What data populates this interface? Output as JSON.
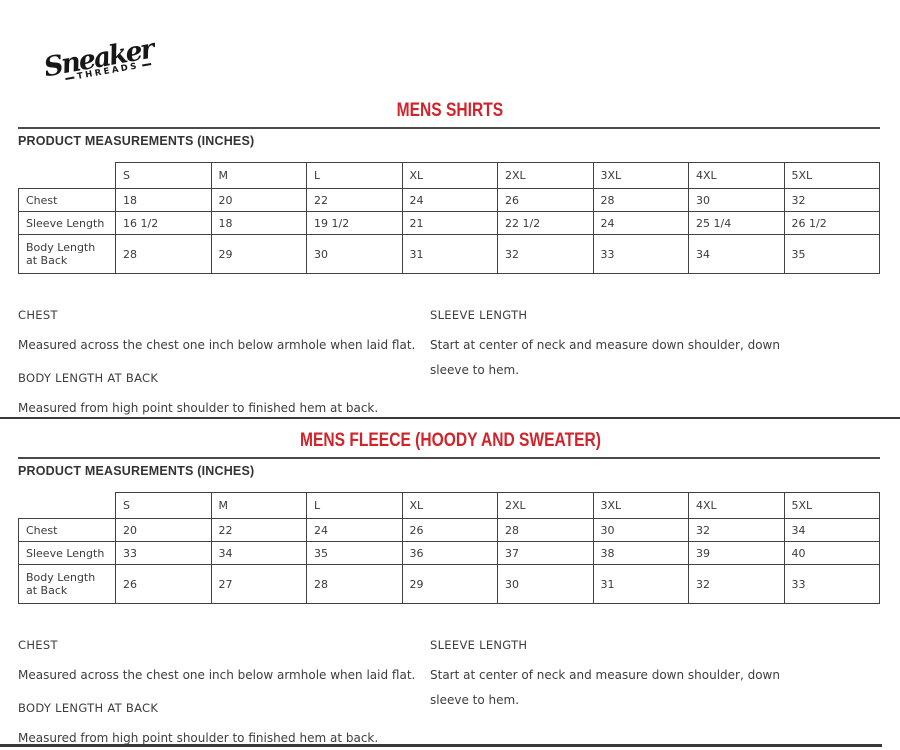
{
  "logo": {
    "name": "Sneaker",
    "sub": "THREADS"
  },
  "colors": {
    "accent_red": "#d2232a",
    "text": "#3d3d3d",
    "line": "#424242"
  },
  "sections": [
    {
      "id": "mens-shirts",
      "title": "MENS SHIRTS",
      "subtitle": "PRODUCT MEASUREMENTS (INCHES)",
      "table": {
        "size_columns": [
          "S",
          "M",
          "L",
          "XL",
          "2XL",
          "3XL",
          "4XL",
          "5XL"
        ],
        "rows": [
          {
            "label": "Chest",
            "values": [
              "18",
              "20",
              "22",
              "24",
              "26",
              "28",
              "30",
              "32"
            ]
          },
          {
            "label": "Sleeve Length",
            "values": [
              "16 1/2",
              "18",
              "19 1/2",
              "21",
              "22 1/2",
              "24",
              "25 1/4",
              "26 1/2"
            ]
          },
          {
            "label": "Body Length at Back",
            "values": [
              "28",
              "29",
              "30",
              "31",
              "32",
              "33",
              "34",
              "35"
            ]
          }
        ]
      },
      "definitions": {
        "left": [
          {
            "term": "CHEST",
            "desc": "Measured across the chest one inch below armhole when laid flat."
          },
          {
            "term": "BODY LENGTH AT BACK",
            "desc": "Measured from high point shoulder to finished hem at back."
          }
        ],
        "right": [
          {
            "term": "SLEEVE LENGTH",
            "desc": "Start at center of neck and measure down shoulder, down sleeve to hem."
          }
        ]
      }
    },
    {
      "id": "mens-fleece",
      "title": "MENS FLEECE (HOODY AND SWEATER)",
      "subtitle": "PRODUCT MEASUREMENTS (INCHES)",
      "table": {
        "size_columns": [
          "S",
          "M",
          "L",
          "XL",
          "2XL",
          "3XL",
          "4XL",
          "5XL"
        ],
        "rows": [
          {
            "label": "Chest",
            "values": [
              "20",
              "22",
              "24",
              "26",
              "28",
              "30",
              "32",
              "34"
            ]
          },
          {
            "label": "Sleeve Length",
            "values": [
              "33",
              "34",
              "35",
              "36",
              "37",
              "38",
              "39",
              "40"
            ]
          },
          {
            "label": "Body Length at Back",
            "values": [
              "26",
              "27",
              "28",
              "29",
              "30",
              "31",
              "32",
              "33"
            ]
          }
        ]
      },
      "definitions": {
        "left": [
          {
            "term": "CHEST",
            "desc": "Measured across the chest one inch below armhole when laid flat."
          },
          {
            "term": "BODY LENGTH AT BACK",
            "desc": "Measured from high point shoulder to finished hem at back."
          }
        ],
        "right": [
          {
            "term": "SLEEVE LENGTH",
            "desc": "Start at center of neck and measure down shoulder, down sleeve to hem."
          }
        ]
      }
    }
  ]
}
